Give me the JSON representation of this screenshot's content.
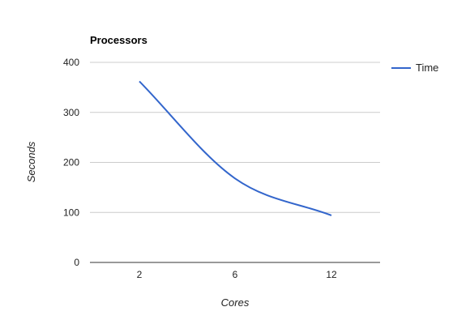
{
  "chart_data": {
    "type": "line",
    "title": "Processors",
    "xlabel": "Cores",
    "ylabel": "Seconds",
    "categories": [
      "2",
      "6",
      "12"
    ],
    "series": [
      {
        "name": "Time",
        "values": [
          362,
          168,
          94
        ],
        "color": "#3366cc"
      }
    ],
    "ylim": [
      0,
      400
    ],
    "yticks": [
      0,
      100,
      200,
      300,
      400
    ],
    "grid": true,
    "legend": "right",
    "smooth": true
  }
}
